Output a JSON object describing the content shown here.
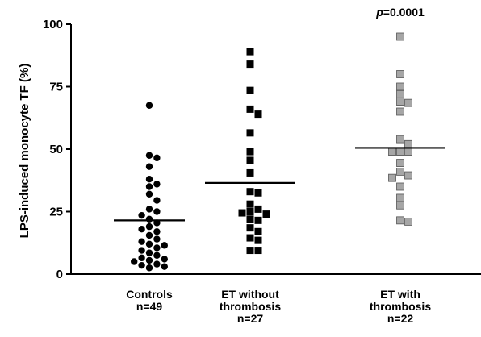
{
  "chart_data": {
    "type": "scatter",
    "title": "",
    "ylabel": "LPS-induced monocyte TF (%)",
    "ylim": [
      0,
      100
    ],
    "yticks": [
      0,
      25,
      50,
      75,
      100
    ],
    "grid": false,
    "annotation": {
      "prefix": "p",
      "text": "=0.0001",
      "group_index": 2
    },
    "groups": [
      {
        "label_lines": [
          "Controls",
          "n=49"
        ],
        "marker": "circle",
        "color": "#000000",
        "median": 21.5,
        "values": [
          67.5,
          47.5,
          46.5,
          43,
          38,
          36,
          35,
          32,
          29.5,
          26,
          25,
          23.5,
          22,
          20.5,
          19,
          18,
          17,
          15.5,
          14,
          13,
          12,
          11.5,
          10.5,
          9.5,
          8.5,
          7.5,
          6.5,
          6,
          5.5,
          5,
          4,
          3.5,
          3,
          2.5
        ]
      },
      {
        "label_lines": [
          "ET without",
          "thrombosis",
          "n=27"
        ],
        "marker": "square",
        "color": "#000000",
        "median": 36.5,
        "values": [
          89,
          84,
          73.5,
          66,
          64,
          56.5,
          49,
          45.5,
          40.5,
          33,
          32.5,
          28,
          26,
          25,
          24.5,
          24,
          22,
          21.5,
          18.5,
          17,
          14.5,
          13.5,
          9.5,
          9.5
        ]
      },
      {
        "label_lines": [
          "ET with",
          "thrombosis",
          "n=22"
        ],
        "marker": "square",
        "color": "#a6a6a6",
        "median": 50.5,
        "values": [
          95,
          80,
          75,
          72,
          69,
          68.5,
          65,
          54,
          52,
          49,
          49,
          49,
          44.5,
          41,
          39.5,
          38.5,
          35,
          30.5,
          27.5,
          21.5,
          21
        ]
      }
    ]
  }
}
